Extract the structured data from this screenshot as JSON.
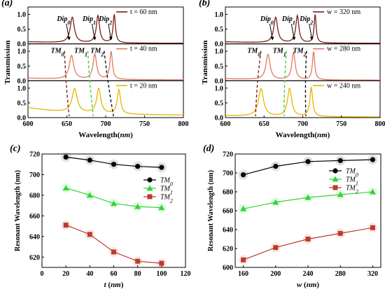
{
  "panel_labels": [
    "(a)",
    "(b)",
    "(c)",
    "(d)"
  ],
  "chart_data": [
    {
      "panel": "(a)",
      "type": "line",
      "xlabel": "Wavelength(nm)",
      "ylabel": "Transmission",
      "xlim": [
        600,
        800
      ],
      "xticks": [
        "600",
        "650",
        "700",
        "750",
        "800"
      ],
      "ylim": [
        0,
        1.25
      ],
      "yticks": [
        "0.0",
        "0.5",
        "1.0"
      ],
      "series": [
        {
          "name": "t = 60 nm",
          "color": "#7b1e14",
          "peaks": [
            {
              "x": 657,
              "h": 0.86,
              "w": 3.2
            },
            {
              "x": 690,
              "h": 0.92,
              "w": 2.5
            },
            {
              "x": 711,
              "h": 0.96,
              "w": 1.8
            }
          ],
          "base": [
            0.05,
            0.02
          ]
        },
        {
          "name": "t = 40 nm",
          "color": "#e3785f",
          "peaks": [
            {
              "x": 656,
              "h": 0.8,
              "w": 3.4
            },
            {
              "x": 686,
              "h": 0.84,
              "w": 2.8
            },
            {
              "x": 707,
              "h": 0.94,
              "w": 2.0
            }
          ],
          "base": [
            0.06,
            0.03
          ]
        },
        {
          "name": "t = 20 nm",
          "color": "#e8b400",
          "peaks": [
            {
              "x": 660,
              "h": 0.8,
              "w": 4.0
            },
            {
              "x": 691,
              "h": 0.84,
              "w": 3.2
            },
            {
              "x": 717,
              "h": 0.82,
              "w": 2.5
            }
          ],
          "base": [
            0.26,
            0.08
          ]
        }
      ],
      "annotations": [
        "Dip2",
        "Dip1",
        "Dip0",
        "TM2",
        "TM1",
        "TM0"
      ]
    },
    {
      "panel": "(b)",
      "type": "line",
      "xlabel": "Wavelength(nm)",
      "ylabel": "Transmission",
      "xlim": [
        600,
        800
      ],
      "xticks": [
        "600",
        "650",
        "700",
        "750",
        "800"
      ],
      "ylim": [
        0,
        1.25
      ],
      "yticks": [
        "0.0",
        "0.5",
        "1.0"
      ],
      "series": [
        {
          "name": "w = 320 nm",
          "color": "#7b1e14",
          "peaks": [
            {
              "x": 665,
              "h": 0.86,
              "w": 3.0
            },
            {
              "x": 693,
              "h": 0.92,
              "w": 2.4
            },
            {
              "x": 716,
              "h": 0.96,
              "w": 1.6
            }
          ],
          "base": [
            0.05,
            0.02
          ]
        },
        {
          "name": "w = 280 nm",
          "color": "#e3785f",
          "peaks": [
            {
              "x": 655,
              "h": 0.85,
              "w": 3.2
            },
            {
              "x": 688,
              "h": 0.92,
              "w": 2.6
            },
            {
              "x": 714,
              "h": 0.95,
              "w": 1.8
            }
          ],
          "base": [
            0.05,
            0.02
          ]
        },
        {
          "name": "w = 240 nm",
          "color": "#e8b400",
          "peaks": [
            {
              "x": 646,
              "h": 0.93,
              "w": 4.0
            },
            {
              "x": 683,
              "h": 0.95,
              "w": 3.2
            },
            {
              "x": 711,
              "h": 0.97,
              "w": 2.2
            }
          ],
          "base": [
            0.05,
            0.02
          ]
        }
      ],
      "annotations": [
        "Dip2",
        "Dip1",
        "Dip0",
        "TM2",
        "TM1",
        "TM0"
      ]
    },
    {
      "panel": "(c)",
      "type": "line",
      "xlabel": "t (nm)",
      "ylabel": "Resonant Wavelength (nm)",
      "xlim": [
        0,
        120
      ],
      "xticks": [
        "0",
        "20",
        "40",
        "60",
        "80",
        "100",
        "120"
      ],
      "ylim": [
        610,
        720
      ],
      "yticks": [
        "620",
        "640",
        "660",
        "680",
        "700",
        "720"
      ],
      "x": [
        20,
        40,
        60,
        80,
        100
      ],
      "legend_position": "right",
      "series": [
        {
          "name": "TM2",
          "color": "#c0392b",
          "marker": "square",
          "values": [
            651,
            642,
            625,
            616,
            614
          ]
        },
        {
          "name": "TM1",
          "color": "#33d633",
          "marker": "triangle",
          "values": [
            687,
            680,
            672,
            669,
            668
          ]
        },
        {
          "name": "TM0",
          "color": "#000000",
          "marker": "circle",
          "values": [
            717,
            714,
            710,
            708,
            707
          ]
        }
      ]
    },
    {
      "panel": "(d)",
      "type": "line",
      "xlabel": "w (nm)",
      "ylabel": "Resonant Wavelength (nm)",
      "xlim": [
        150,
        330
      ],
      "xticks": [
        "160",
        "200",
        "240",
        "280",
        "320"
      ],
      "ylim": [
        600,
        720
      ],
      "yticks": [
        "600",
        "620",
        "640",
        "660",
        "680",
        "700",
        "720"
      ],
      "x": [
        160,
        200,
        240,
        280,
        320
      ],
      "legend_position": "top-left",
      "series": [
        {
          "name": "TM2",
          "color": "#c0392b",
          "marker": "square",
          "values": [
            608,
            621,
            630,
            636,
            642
          ]
        },
        {
          "name": "TM1",
          "color": "#33d633",
          "marker": "triangle",
          "values": [
            662,
            669,
            674,
            677,
            680
          ]
        },
        {
          "name": "TM0",
          "color": "#000000",
          "marker": "circle",
          "values": [
            698,
            707,
            712,
            713,
            714
          ]
        }
      ]
    }
  ]
}
